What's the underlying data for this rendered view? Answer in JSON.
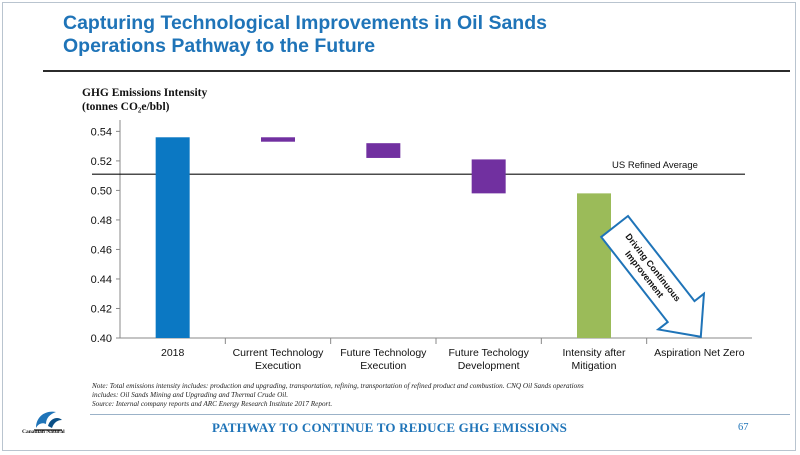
{
  "slide": {
    "title_line1": "Capturing Technological Improvements in Oil Sands",
    "title_line2": "Operations Pathway to the Future",
    "footer": "PATHWAY TO CONTINUE TO REDUCE GHG EMISSIONS",
    "page_number": "67",
    "logo_text": "Canadian Natural",
    "note_line1": "Note: Total emissions intensity includes: production and upgrading, transportation, refining, transportation of refined product and combustion. CNQ Oil Sands operations",
    "note_line2": "includes: Oil Sands Mining and Upgrading and Thermal Crude Oil.",
    "note_line3": "Source: Internal company reports and ARC Energy Research Institute 2017 Report."
  },
  "colors": {
    "title": "#1f74b8",
    "bar_2018": "#0b78c3",
    "bar_steps": "#7130a0",
    "bar_mitigation": "#9bbb59",
    "arrow": "#1f74b8"
  },
  "chart_data": {
    "type": "bar",
    "variant": "waterfall",
    "ylabel_line1": "GHG Emissions Intensity",
    "ylabel_line2": "(tonnes CO₂e/bbl)",
    "ylim": [
      0.4,
      0.545
    ],
    "yticks": [
      "0.40",
      "0.42",
      "0.44",
      "0.46",
      "0.48",
      "0.50",
      "0.52",
      "0.54"
    ],
    "ytick_values": [
      0.4,
      0.42,
      0.44,
      0.46,
      0.48,
      0.5,
      0.52,
      0.54
    ],
    "categories": [
      [
        "2018"
      ],
      [
        "Current Technology",
        "Execution"
      ],
      [
        "Future Technology",
        "Execution"
      ],
      [
        "Future Techology",
        "Development"
      ],
      [
        "Intensity after",
        "Mitigation"
      ],
      [
        "Aspiration Net Zero"
      ]
    ],
    "bars": [
      {
        "kind": "total",
        "bottom": 0.4,
        "top": 0.536
      },
      {
        "kind": "step",
        "bottom": 0.533,
        "top": 0.536
      },
      {
        "kind": "step",
        "bottom": 0.522,
        "top": 0.532
      },
      {
        "kind": "step",
        "bottom": 0.498,
        "top": 0.521
      },
      {
        "kind": "total",
        "bottom": 0.4,
        "top": 0.498
      },
      null
    ],
    "reference_line": {
      "label": "US Refined Average",
      "value": 0.511
    },
    "annotation": {
      "line1": "Driving Continuous",
      "line2": "Improvement"
    }
  }
}
